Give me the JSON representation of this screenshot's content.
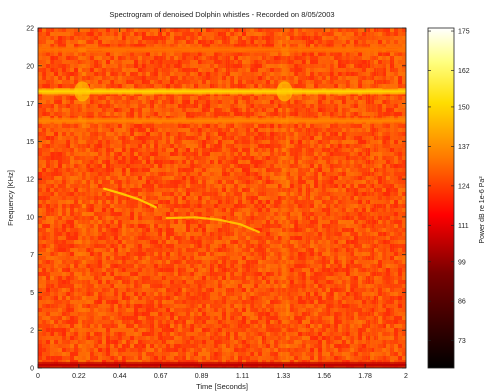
{
  "chart_data": {
    "type": "heatmap",
    "title": "Spectrogram of denoised Dolphin whistles - Recorded on 8/05/2003",
    "xlabel": "Time [Seconds]",
    "ylabel": "Frequency [KHz]",
    "xlim": [
      0,
      2
    ],
    "ylim": [
      0,
      22
    ],
    "x_ticks": [
      "0",
      "0.22",
      "0.44",
      "0.67",
      "0.89",
      "1.11",
      "1.33",
      "1.56",
      "1.78",
      "2"
    ],
    "y_ticks": [
      "0",
      "2",
      "5",
      "7",
      "10",
      "12",
      "15",
      "17",
      "20",
      "22"
    ],
    "colorbar": {
      "label": "Power dB re 1e-6 Pa²",
      "ticks": [
        "73",
        "86",
        "99",
        "111",
        "124",
        "137",
        "150",
        "162",
        "175"
      ],
      "range": [
        64,
        176
      ]
    },
    "background_level": 125,
    "features": [
      {
        "name": "",
        "kind": "horizontal-band",
        "freq_khz": 17.9,
        "level": 150
      },
      {
        "name": "",
        "kind": "horizontal-band",
        "freq_khz": 16.0,
        "level": 135
      },
      {
        "name": "",
        "kind": "horizontal-band",
        "freq_khz": 20.6,
        "level": 132
      },
      {
        "name": "",
        "kind": "broadband-click",
        "time_s": 0.24,
        "level": 145
      },
      {
        "name": "",
        "kind": "broadband-click",
        "time_s": 1.34,
        "level": 145
      },
      {
        "name": "",
        "kind": "whistle",
        "level": 150,
        "points": [
          [
            0.36,
            11.6
          ],
          [
            0.45,
            11.3
          ],
          [
            0.55,
            10.9
          ],
          [
            0.64,
            10.4
          ]
        ]
      },
      {
        "name": "",
        "kind": "whistle",
        "level": 148,
        "points": [
          [
            0.7,
            9.7
          ],
          [
            0.85,
            9.75
          ],
          [
            0.98,
            9.6
          ],
          [
            1.1,
            9.3
          ],
          [
            1.2,
            8.8
          ]
        ]
      },
      {
        "name": "",
        "kind": "low-freq-band",
        "freq_khz": 0.2,
        "level": 105
      }
    ]
  }
}
